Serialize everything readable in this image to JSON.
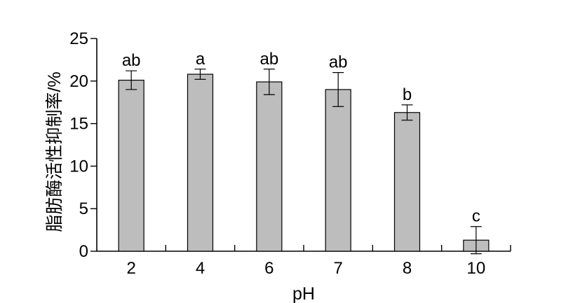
{
  "chart_data": {
    "type": "bar",
    "xlabel": "pH",
    "ylabel": "脂肪酶活性抑制率/%",
    "ylim": [
      0,
      25
    ],
    "yticks": [
      0,
      5,
      10,
      15,
      20,
      25
    ],
    "categories": [
      "2",
      "4",
      "6",
      "7",
      "8",
      "10"
    ],
    "values": [
      20.1,
      20.8,
      19.9,
      19.0,
      16.3,
      1.3
    ],
    "errors": [
      1.1,
      0.6,
      1.5,
      2.0,
      0.9,
      1.6
    ],
    "significance": [
      "ab",
      "a",
      "ab",
      "ab",
      "b",
      "c"
    ],
    "bar_color": "#bdbdbd",
    "grid": false
  }
}
